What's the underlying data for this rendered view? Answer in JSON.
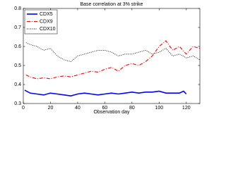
{
  "chart_data": {
    "type": "line",
    "title": "Base correlation at 3% strike",
    "x_label": "Observation day",
    "xlim": [
      0,
      130
    ],
    "xticks": [
      0,
      20,
      40,
      60,
      80,
      100,
      120
    ],
    "ylim": [
      0.3,
      0.8
    ],
    "yticks": [
      0.3,
      0.4,
      0.5,
      0.6,
      0.7,
      0.8
    ],
    "legend": "upper left",
    "series": [
      {
        "name": "CDX5",
        "color": "#0000ff",
        "dash": "solid",
        "x": [
          1,
          5,
          10,
          15,
          20,
          25,
          30,
          35,
          40,
          45,
          50,
          55,
          60,
          65,
          70,
          75,
          80,
          85,
          90,
          95,
          100,
          105,
          110,
          115,
          118,
          120
        ],
        "values": [
          0.37,
          0.355,
          0.35,
          0.345,
          0.355,
          0.35,
          0.345,
          0.34,
          0.35,
          0.355,
          0.35,
          0.345,
          0.35,
          0.355,
          0.35,
          0.355,
          0.36,
          0.355,
          0.36,
          0.36,
          0.365,
          0.355,
          0.355,
          0.355,
          0.365,
          0.35
        ]
      },
      {
        "name": "CDX9",
        "color": "#ff0000",
        "dash": "dashdot",
        "x": [
          2,
          5,
          10,
          15,
          20,
          25,
          30,
          35,
          40,
          45,
          50,
          55,
          60,
          65,
          70,
          75,
          80,
          85,
          90,
          95,
          100,
          105,
          110,
          115,
          120,
          125,
          130
        ],
        "values": [
          0.45,
          0.44,
          0.43,
          0.435,
          0.43,
          0.44,
          0.445,
          0.44,
          0.45,
          0.46,
          0.47,
          0.465,
          0.48,
          0.49,
          0.47,
          0.5,
          0.51,
          0.5,
          0.52,
          0.55,
          0.6,
          0.63,
          0.58,
          0.6,
          0.56,
          0.6,
          0.59
        ]
      },
      {
        "name": "CDX10",
        "color": "#000000",
        "dash": "dotted",
        "x": [
          2,
          5,
          10,
          15,
          20,
          25,
          30,
          35,
          40,
          45,
          50,
          55,
          60,
          65,
          70,
          75,
          80,
          85,
          90,
          95,
          100,
          105,
          110,
          115,
          120,
          125,
          130
        ],
        "values": [
          0.62,
          0.61,
          0.6,
          0.58,
          0.59,
          0.55,
          0.53,
          0.52,
          0.55,
          0.56,
          0.57,
          0.58,
          0.58,
          0.57,
          0.55,
          0.56,
          0.56,
          0.57,
          0.58,
          0.56,
          0.57,
          0.59,
          0.55,
          0.56,
          0.54,
          0.55,
          0.53
        ]
      }
    ]
  }
}
